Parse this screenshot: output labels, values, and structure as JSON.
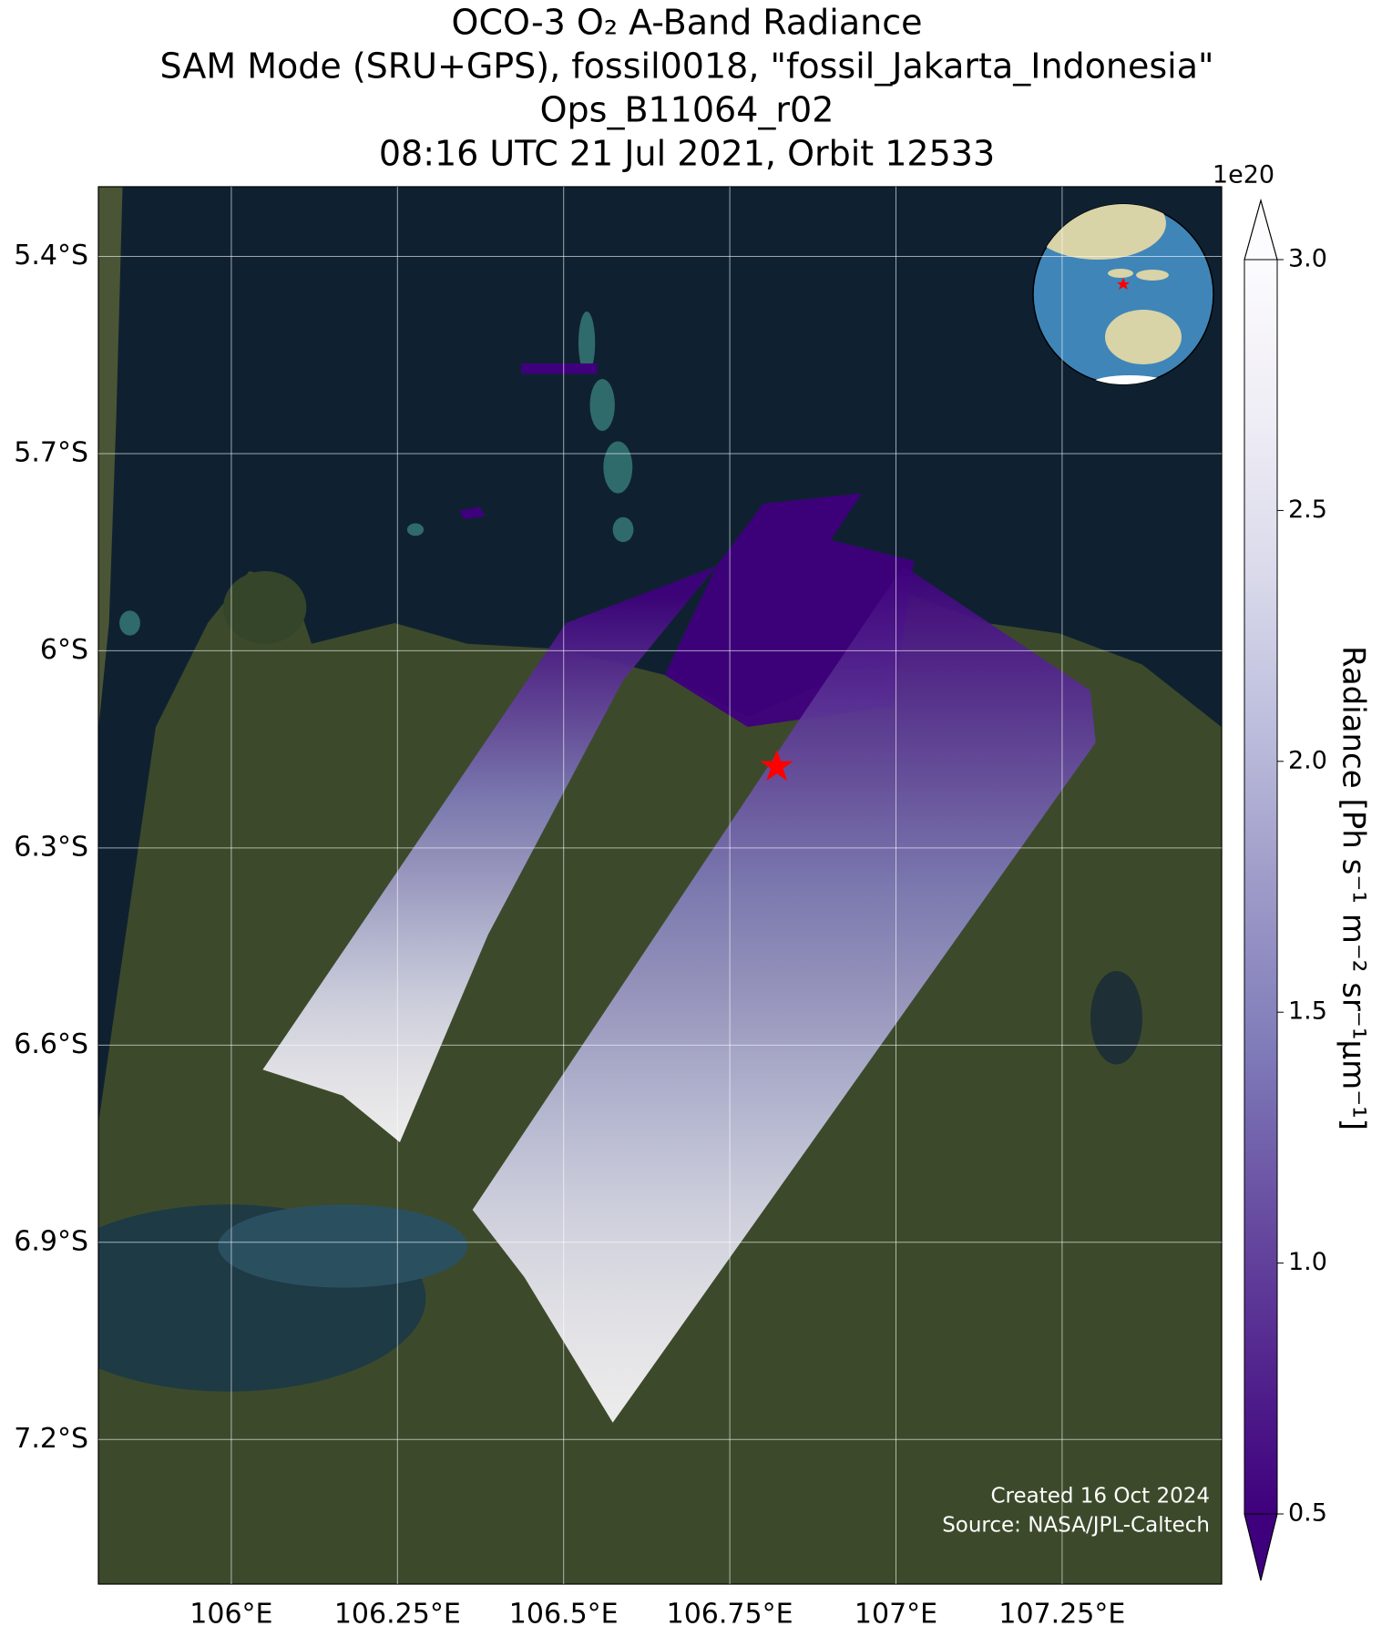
{
  "chart_data": {
    "type": "map",
    "title": [
      "OCO-3 O₂ A-Band Radiance",
      "SAM Mode (SRU+GPS), fossil0018, \"fossil_Jakarta_Indonesia\"",
      "Ops_B11064_r02",
      "08:16 UTC 21 Jul 2021, Orbit 12533"
    ],
    "xlim": [
      105.8,
      107.49
    ],
    "ylim": [
      -7.42,
      -5.294
    ],
    "xticks": [
      {
        "value": 106,
        "label": "106°E"
      },
      {
        "value": 106.25,
        "label": "106.25°E"
      },
      {
        "value": 106.5,
        "label": "106.5°E"
      },
      {
        "value": 106.75,
        "label": "106.75°E"
      },
      {
        "value": 107,
        "label": "107°E"
      },
      {
        "value": 107.25,
        "label": "107.25°E"
      }
    ],
    "yticks": [
      {
        "value": -5.4,
        "label": "5.4°S"
      },
      {
        "value": -5.7,
        "label": "5.7°S"
      },
      {
        "value": -6,
        "label": "6°S"
      },
      {
        "value": -6.3,
        "label": "6.3°S"
      },
      {
        "value": -6.6,
        "label": "6.6°S"
      },
      {
        "value": -6.9,
        "label": "6.9°S"
      },
      {
        "value": -7.2,
        "label": "7.2°S"
      }
    ],
    "grid": true,
    "colorbar": {
      "label": "Radiance [Ph s⁻¹ m⁻² sr⁻¹µm⁻¹]",
      "offset_label": "1e20",
      "lim": [
        0.5,
        3.0
      ],
      "ticks": [
        0.5,
        {
          "value": 1,
          "label": "1.0"
        },
        1.5,
        {
          "value": 2,
          "label": "2.0"
        },
        2.5,
        {
          "value": 3,
          "label": "3.0"
        }
      ],
      "colormap": [
        "#3f007d",
        "#54278f",
        "#6a51a3",
        "#807dba",
        "#9e9ac8",
        "#bcbddc",
        "#dadaeb",
        "#efedf5",
        "#fcfbfd"
      ]
    },
    "annotations": [
      "Created 16 Oct 2024",
      "Source: NASA/JPL-Caltech"
    ]
  }
}
